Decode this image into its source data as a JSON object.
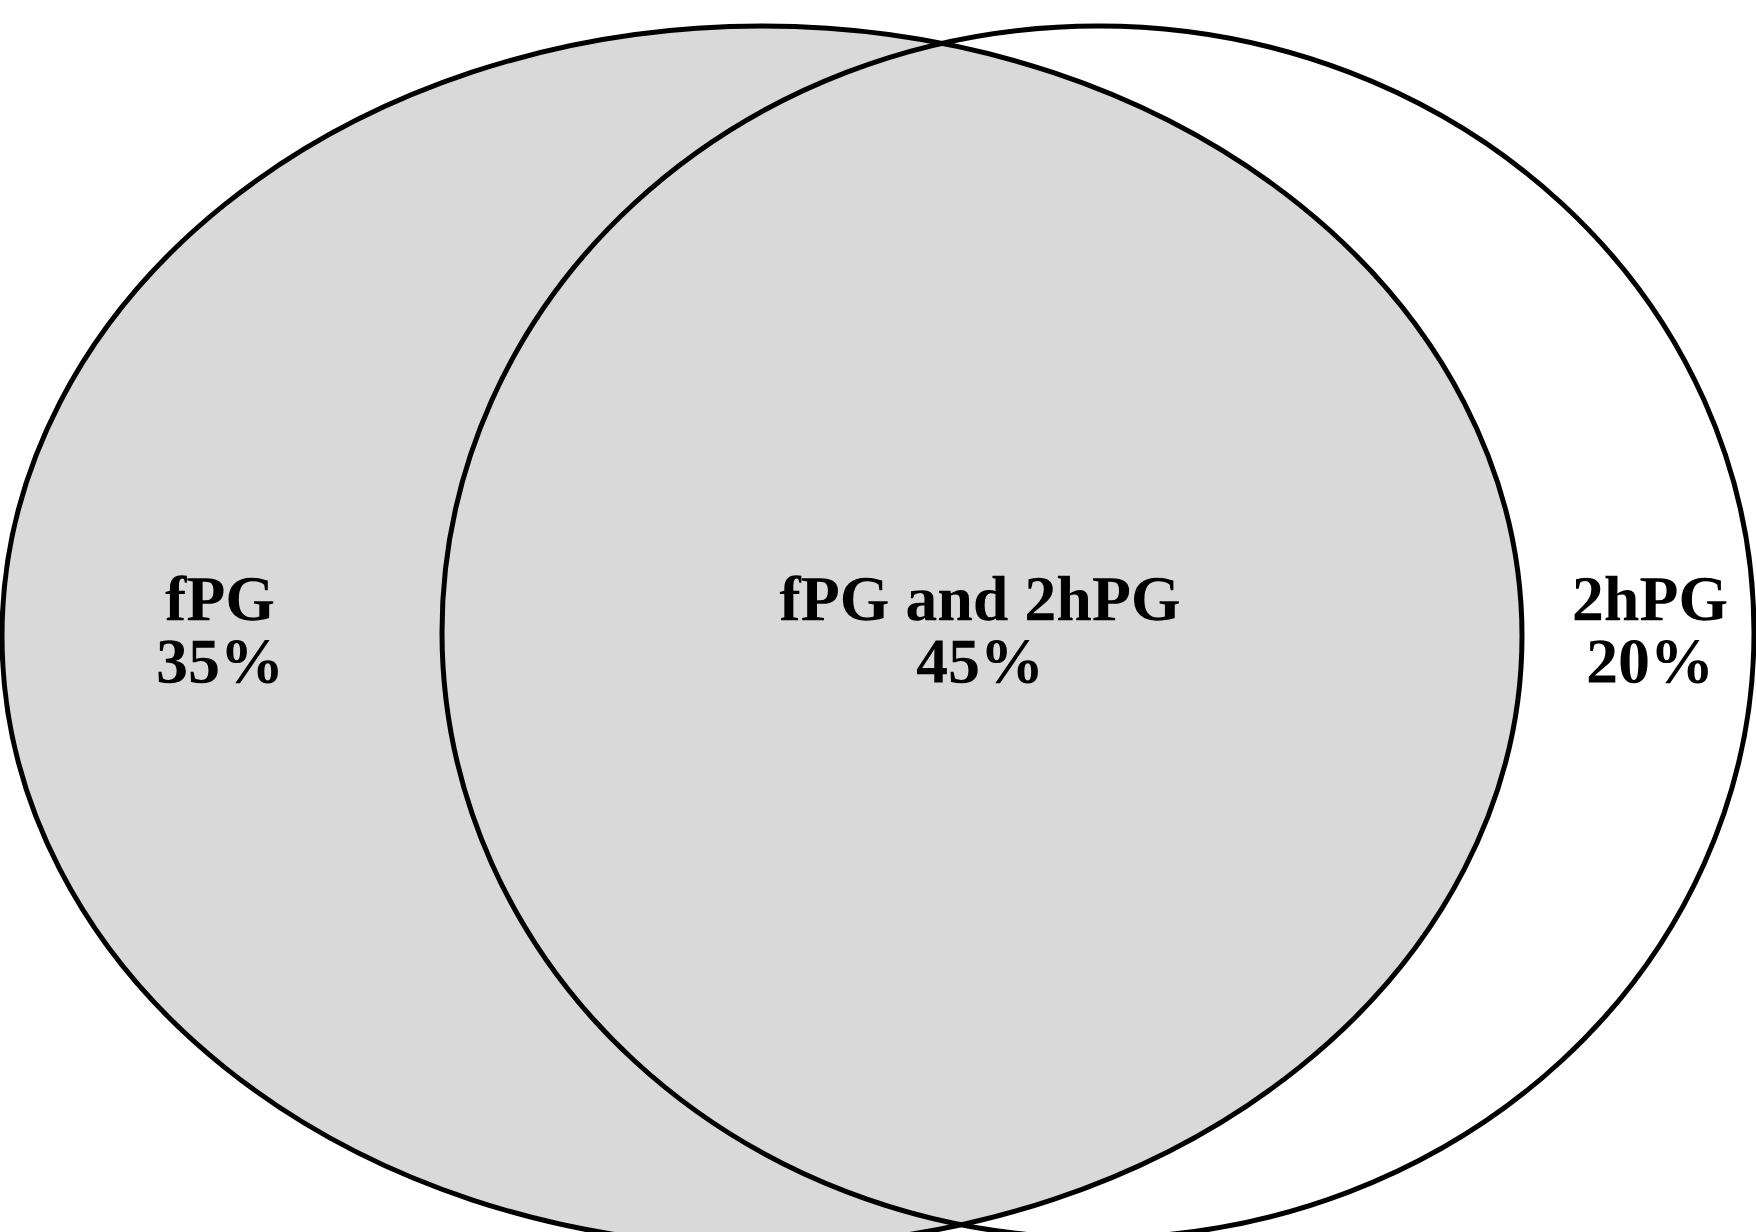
{
  "chart_data": {
    "type": "other",
    "categories": [
      "fPG",
      "fPG and 2hPG",
      "2hPG"
    ],
    "values": [
      35,
      45,
      20
    ],
    "value_labels": [
      "35%",
      "45%",
      "20%"
    ],
    "colors": [
      "#d9d9d9",
      "#d9d9d9",
      "#ffffff"
    ]
  }
}
